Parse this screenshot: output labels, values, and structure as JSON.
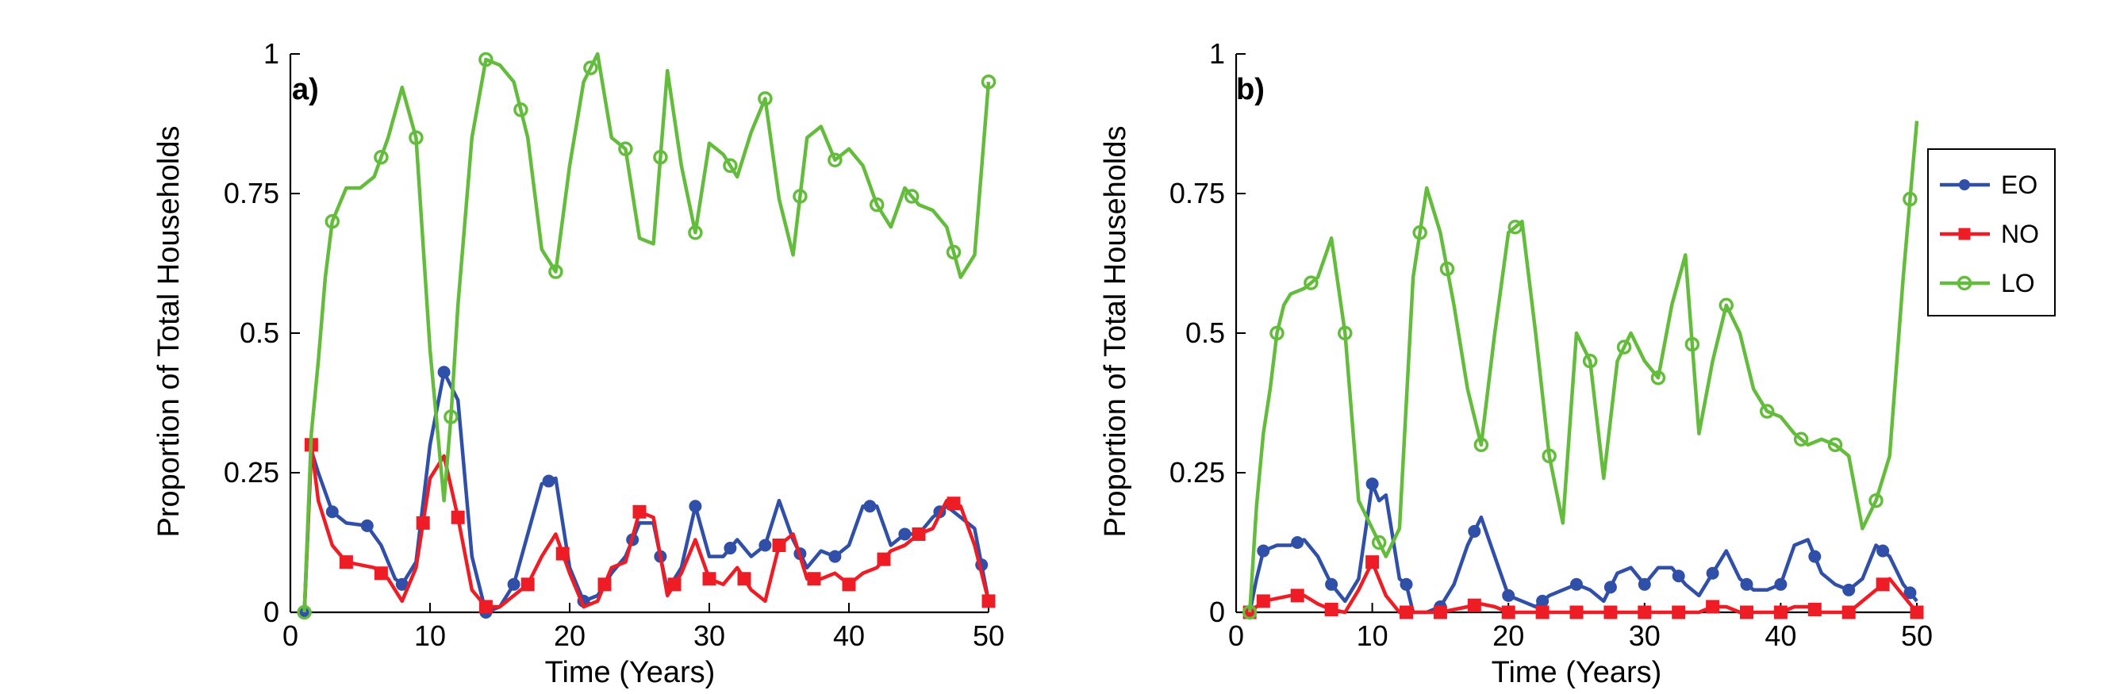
{
  "chart_data": [
    {
      "type": "line",
      "panel_label": "a)",
      "xlabel": "Time (Years)",
      "ylabel": "Proportion of Total Households",
      "xlim": [
        0,
        50
      ],
      "ylim": [
        0,
        1
      ],
      "xticks": [
        0,
        10,
        20,
        30,
        40,
        50
      ],
      "xtick_labels": [
        "0",
        "10",
        "20",
        "30",
        "40",
        "50"
      ],
      "yticks": [
        0,
        0.25,
        0.5,
        0.75,
        1
      ],
      "ytick_labels": [
        "0",
        "0.25",
        "0.5",
        "0.75",
        "1"
      ],
      "grid": false,
      "legend": false,
      "series": [
        {
          "name": "EO",
          "color": "#2f4fa8",
          "marker": "circle",
          "x": [
            1,
            1.5,
            2,
            3,
            4,
            5.5,
            6.5,
            7.5,
            8,
            9,
            10,
            11,
            12,
            13,
            14,
            15,
            16,
            17,
            18,
            19,
            20,
            21,
            22,
            23,
            24,
            25,
            26,
            27,
            28,
            29,
            30,
            31,
            32,
            33,
            34,
            35,
            36,
            37,
            38,
            39,
            40,
            41,
            42,
            43,
            44,
            45,
            46,
            47,
            48,
            49,
            50
          ],
          "y": [
            0,
            0.29,
            0.25,
            0.18,
            0.16,
            0.155,
            0.12,
            0.06,
            0.05,
            0.09,
            0.3,
            0.43,
            0.38,
            0.1,
            0,
            0.01,
            0.05,
            0.14,
            0.23,
            0.24,
            0.08,
            0.02,
            0.03,
            0.07,
            0.1,
            0.16,
            0.16,
            0.04,
            0.08,
            0.19,
            0.1,
            0.1,
            0.13,
            0.1,
            0.12,
            0.2,
            0.13,
            0.08,
            0.11,
            0.1,
            0.12,
            0.19,
            0.19,
            0.12,
            0.14,
            0.14,
            0.17,
            0.19,
            0.17,
            0.15,
            0.02
          ],
          "marker_x": [
            1,
            3,
            5.5,
            8,
            11,
            14,
            16,
            18.5,
            21,
            22.5,
            24.5,
            26.5,
            29,
            31.5,
            34,
            36.5,
            39,
            41.5,
            44,
            46.5,
            49.5
          ]
        },
        {
          "name": "NO",
          "color": "#ee1c24",
          "marker": "square",
          "x": [
            1,
            1.5,
            2,
            3,
            4,
            5,
            6,
            7,
            8,
            9,
            10,
            11,
            12,
            13,
            14,
            15,
            16,
            17,
            18,
            19,
            20,
            21,
            22,
            23,
            24,
            25,
            26,
            27,
            28,
            29,
            30,
            31,
            32,
            33,
            34,
            35,
            36,
            37,
            38,
            39,
            40,
            41,
            42,
            43,
            44,
            45,
            46,
            47,
            48,
            49,
            50
          ],
          "y": [
            0,
            0.3,
            0.2,
            0.12,
            0.09,
            0.085,
            0.08,
            0.06,
            0.02,
            0.08,
            0.24,
            0.28,
            0.17,
            0.04,
            0.01,
            0.01,
            0.03,
            0.05,
            0.1,
            0.14,
            0.07,
            0.01,
            0.02,
            0.08,
            0.09,
            0.18,
            0.17,
            0.03,
            0.07,
            0.13,
            0.06,
            0.05,
            0.08,
            0.04,
            0.02,
            0.12,
            0.14,
            0.06,
            0.06,
            0.07,
            0.05,
            0.07,
            0.08,
            0.11,
            0.12,
            0.14,
            0.15,
            0.2,
            0.19,
            0.12,
            0.02
          ],
          "marker_x": [
            1.5,
            4,
            6.5,
            9.5,
            12,
            14,
            17,
            19.5,
            22.5,
            25,
            27.5,
            30,
            32.5,
            35,
            37.5,
            40,
            42.5,
            45,
            47.5,
            50
          ]
        },
        {
          "name": "LO",
          "color": "#64bc3c",
          "marker": "circle-open",
          "x": [
            1,
            1.5,
            2,
            2.5,
            3,
            3.5,
            4,
            5,
            6,
            7,
            8,
            9,
            10,
            11,
            11.5,
            12,
            13,
            14,
            15,
            16,
            17,
            18,
            19,
            20,
            21,
            22,
            23,
            24,
            25,
            26,
            27,
            28,
            29,
            30,
            31,
            32,
            33,
            34,
            35,
            36,
            37,
            38,
            39,
            40,
            41,
            42,
            43,
            44,
            45,
            46,
            47,
            48,
            49,
            50
          ],
          "y": [
            0,
            0.32,
            0.45,
            0.6,
            0.7,
            0.73,
            0.76,
            0.76,
            0.78,
            0.85,
            0.94,
            0.85,
            0.47,
            0.2,
            0.35,
            0.55,
            0.85,
            0.99,
            0.98,
            0.95,
            0.85,
            0.65,
            0.61,
            0.8,
            0.95,
            1.0,
            0.85,
            0.83,
            0.67,
            0.66,
            0.97,
            0.8,
            0.68,
            0.84,
            0.82,
            0.78,
            0.86,
            0.92,
            0.74,
            0.64,
            0.85,
            0.87,
            0.81,
            0.83,
            0.8,
            0.73,
            0.69,
            0.76,
            0.73,
            0.72,
            0.69,
            0.6,
            0.64,
            0.95
          ],
          "marker_x": [
            1,
            3,
            6.5,
            9,
            11.5,
            14,
            16.5,
            19,
            21.5,
            24,
            26.5,
            29,
            31.5,
            34,
            36.5,
            39,
            42,
            44.5,
            47.5,
            50
          ]
        }
      ]
    },
    {
      "type": "line",
      "panel_label": "b)",
      "xlabel": "Time (Years)",
      "ylabel": "Proportion of Total Households",
      "xlim": [
        0,
        50
      ],
      "ylim": [
        0,
        1
      ],
      "xticks": [
        0,
        10,
        20,
        30,
        40,
        50
      ],
      "xtick_labels": [
        "0",
        "10",
        "20",
        "30",
        "40",
        "50"
      ],
      "yticks": [
        0,
        0.25,
        0.5,
        0.75,
        1
      ],
      "ytick_labels": [
        "0",
        "0.25",
        "0.5",
        "0.75",
        "1"
      ],
      "grid": false,
      "legend": true,
      "legend_position": "right",
      "legend_entries": [
        "EO",
        "NO",
        "LO"
      ],
      "series": [
        {
          "name": "EO",
          "color": "#2f4fa8",
          "marker": "circle",
          "x": [
            1,
            1.5,
            2,
            3,
            4,
            5,
            6,
            7,
            8,
            9,
            10,
            10.5,
            11,
            12,
            12.5,
            13,
            14,
            15,
            16,
            17,
            18,
            19,
            20,
            21,
            22,
            23,
            24,
            25,
            26,
            27,
            28,
            29,
            30,
            31,
            32,
            33,
            34,
            35,
            36,
            37,
            38,
            39,
            40,
            41,
            42,
            43,
            44,
            45,
            46,
            47,
            48,
            49,
            50
          ],
          "y": [
            0,
            0.06,
            0.11,
            0.12,
            0.12,
            0.13,
            0.1,
            0.05,
            0.02,
            0.06,
            0.23,
            0.2,
            0.21,
            0.06,
            0.05,
            0,
            0,
            0.01,
            0.05,
            0.12,
            0.17,
            0.1,
            0.03,
            0.02,
            0.01,
            0.03,
            0.04,
            0.05,
            0.04,
            0.02,
            0.07,
            0.08,
            0.05,
            0.08,
            0.08,
            0.05,
            0.03,
            0.07,
            0.11,
            0.06,
            0.04,
            0.04,
            0.05,
            0.12,
            0.13,
            0.07,
            0.05,
            0.04,
            0.06,
            0.12,
            0.1,
            0.05,
            0.02
          ],
          "marker_x": [
            1,
            2,
            4.5,
            7,
            10,
            12.5,
            15,
            17.5,
            20,
            22.5,
            25,
            27.5,
            30,
            32.5,
            35,
            37.5,
            40,
            42.5,
            45,
            47.5,
            49.5
          ]
        },
        {
          "name": "NO",
          "color": "#ee1c24",
          "marker": "square",
          "x": [
            1,
            2,
            3,
            4,
            5,
            6,
            7,
            8,
            9,
            10,
            11,
            12,
            13,
            14,
            15,
            16,
            17,
            18,
            19,
            20,
            21,
            22,
            23,
            24,
            25,
            26,
            27,
            28,
            29,
            30,
            31,
            32,
            33,
            34,
            35,
            36,
            37,
            38,
            39,
            40,
            41,
            42,
            43,
            44,
            45,
            46,
            47,
            48,
            49,
            50
          ],
          "y": [
            0,
            0.02,
            0.025,
            0.03,
            0.03,
            0.015,
            0.005,
            0,
            0.04,
            0.09,
            0.03,
            0,
            0,
            0,
            0,
            0.005,
            0.01,
            0.015,
            0.01,
            0,
            0,
            0,
            0,
            0,
            0,
            0,
            0,
            0,
            0,
            0,
            0,
            0,
            0,
            0,
            0.01,
            0.01,
            0,
            0,
            0,
            0,
            0.01,
            0.01,
            0,
            0,
            0,
            0.02,
            0.04,
            0.06,
            0.03,
            0
          ],
          "marker_x": [
            1,
            2,
            4.5,
            7,
            10,
            12.5,
            15,
            17.5,
            20,
            22.5,
            25,
            27.5,
            30,
            32.5,
            35,
            37.5,
            40,
            42.5,
            45,
            47.5,
            50
          ]
        },
        {
          "name": "LO",
          "color": "#64bc3c",
          "marker": "circle-open",
          "x": [
            1,
            1.5,
            2,
            2.5,
            3,
            3.5,
            4,
            5,
            6,
            7,
            8,
            9,
            10,
            11,
            12,
            13,
            14,
            15,
            16,
            17,
            18,
            19,
            20,
            21,
            22,
            23,
            24,
            25,
            26,
            27,
            28,
            29,
            30,
            31,
            32,
            33,
            34,
            35,
            36,
            37,
            38,
            39,
            40,
            41,
            42,
            43,
            44,
            45,
            46,
            47,
            48,
            49,
            50
          ],
          "y": [
            0,
            0.19,
            0.32,
            0.4,
            0.5,
            0.55,
            0.57,
            0.58,
            0.6,
            0.67,
            0.5,
            0.2,
            0.15,
            0.1,
            0.15,
            0.6,
            0.76,
            0.68,
            0.55,
            0.4,
            0.3,
            0.5,
            0.68,
            0.7,
            0.5,
            0.28,
            0.16,
            0.5,
            0.45,
            0.24,
            0.45,
            0.5,
            0.45,
            0.42,
            0.55,
            0.64,
            0.32,
            0.45,
            0.55,
            0.5,
            0.4,
            0.36,
            0.35,
            0.32,
            0.3,
            0.31,
            0.3,
            0.28,
            0.15,
            0.2,
            0.28,
            0.6,
            0.88
          ],
          "marker_x": [
            1,
            3,
            5.5,
            8,
            10.5,
            13.5,
            15.5,
            18,
            20.5,
            23,
            26,
            28.5,
            31,
            33.5,
            36,
            39,
            41.5,
            44,
            47,
            49.5
          ]
        }
      ]
    }
  ]
}
